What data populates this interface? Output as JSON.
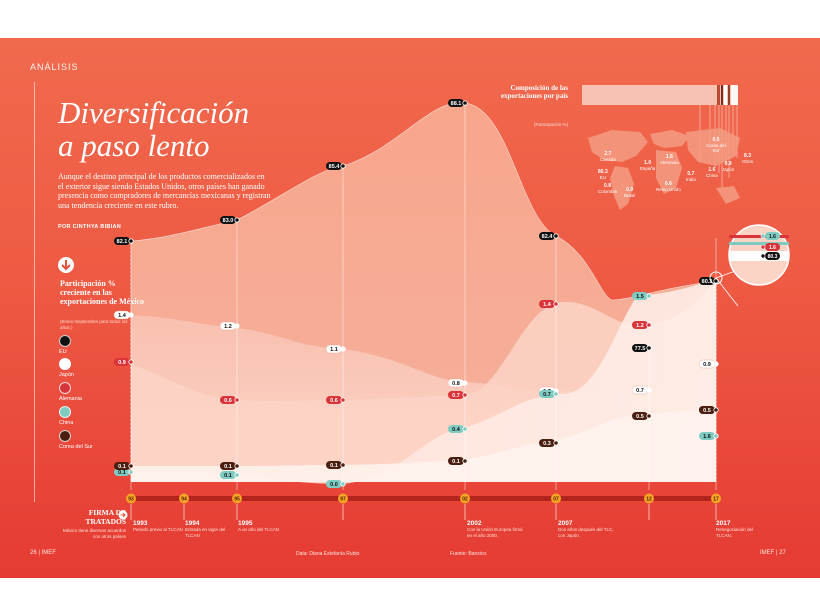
{
  "page": {
    "section": "ANÁLISIS",
    "title_line1": "Diversificación",
    "title_line2": "a paso lento",
    "dek": "Aunque el destino principal de los productos comercializados en el exterior sigue siendo Estados Unidos, otros países han ganado presencia como compradores de mercancías mexicanas y registran una tendencia creciente en este rubro.",
    "byline": "POR CINTHYA BIBIAN",
    "page_left": "26 | IMEF",
    "page_right": "IMEF | 27",
    "credit_data": "Data: Diana Estefanía Rubio",
    "credit_source": "Fuente: Banxico."
  },
  "legend": {
    "title": "Participación % creciente en las exportaciones de México",
    "note": "(Enero-Septiembre para todos los años )",
    "items": [
      {
        "label": "EU",
        "color": "#111111"
      },
      {
        "label": "Japón",
        "color": "#ffffff"
      },
      {
        "label": "Alemania",
        "color": "#d8343a"
      },
      {
        "label": "China",
        "color": "#7ecbc2"
      },
      {
        "label": "Corea del Sur",
        "color": "#4a1f12"
      }
    ]
  },
  "composition": {
    "title": "Composición de las exportaciones por país",
    "note": "(Participación %)",
    "countries": [
      {
        "name": "EU",
        "value": "80.3"
      },
      {
        "name": "Canadá",
        "value": "2.7"
      },
      {
        "name": "España",
        "value": "1.0"
      },
      {
        "name": "Alemania",
        "value": "1.6"
      },
      {
        "name": "Reino Unido",
        "value": "0.6"
      },
      {
        "name": "Colombia",
        "value": "0.8"
      },
      {
        "name": "Brasil",
        "value": "0.9"
      },
      {
        "name": "Corea del Sur",
        "value": "0.5"
      },
      {
        "name": "India",
        "value": "0.7"
      },
      {
        "name": "China",
        "value": "1.6"
      },
      {
        "name": "Japón",
        "value": "0.9"
      },
      {
        "name": "Otros",
        "value": "8.3"
      }
    ],
    "zoom_labels": [
      "1.6",
      "1.6",
      "80.3"
    ]
  },
  "timeline": {
    "title": "FIRMA DE TRATADOS",
    "note": "México tiene diversos acuerdos con otros países",
    "years": [
      "93",
      "94",
      "95",
      "97",
      "02",
      "07",
      "12",
      "17"
    ],
    "events": [
      {
        "year": "1993",
        "text": "Periodo previo al TLCAN"
      },
      {
        "year": "1994",
        "text": "Entrada en vigor del TLCAN"
      },
      {
        "year": "1995",
        "text": "A un año del TLCAN"
      },
      {
        "year": "2002",
        "text": "Con la Unión Europea firmó en el año 2000."
      },
      {
        "year": "2007",
        "text": "Dos años después del TLC, con Japón."
      },
      {
        "year": "2017",
        "text": "Renegociación del TLCAN."
      }
    ]
  },
  "chart_data": {
    "type": "area",
    "x": [
      "93",
      "94",
      "95",
      "97",
      "02",
      "07",
      "12",
      "17"
    ],
    "series": [
      {
        "name": "EU",
        "color": "#111111",
        "values": [
          82.1,
          null,
          83.0,
          85.4,
          88.1,
          82.4,
          77.5,
          80.3
        ]
      },
      {
        "name": "Japón",
        "color": "#ffffff",
        "values": [
          1.4,
          null,
          1.2,
          1.1,
          0.8,
          0.7,
          0.7,
          0.9
        ]
      },
      {
        "name": "Alemania",
        "color": "#d8343a",
        "values": [
          0.9,
          null,
          0.6,
          0.6,
          0.7,
          1.4,
          1.2,
          1.6
        ]
      },
      {
        "name": "China",
        "color": "#7ecbc2",
        "values": [
          0.1,
          null,
          0.1,
          0.0,
          0.4,
          0.7,
          1.5,
          1.6
        ]
      },
      {
        "name": "Corea del Sur",
        "color": "#4a1f12",
        "values": [
          0.1,
          null,
          0.1,
          0.1,
          0.1,
          0.3,
          0.5,
          0.5
        ]
      }
    ]
  }
}
